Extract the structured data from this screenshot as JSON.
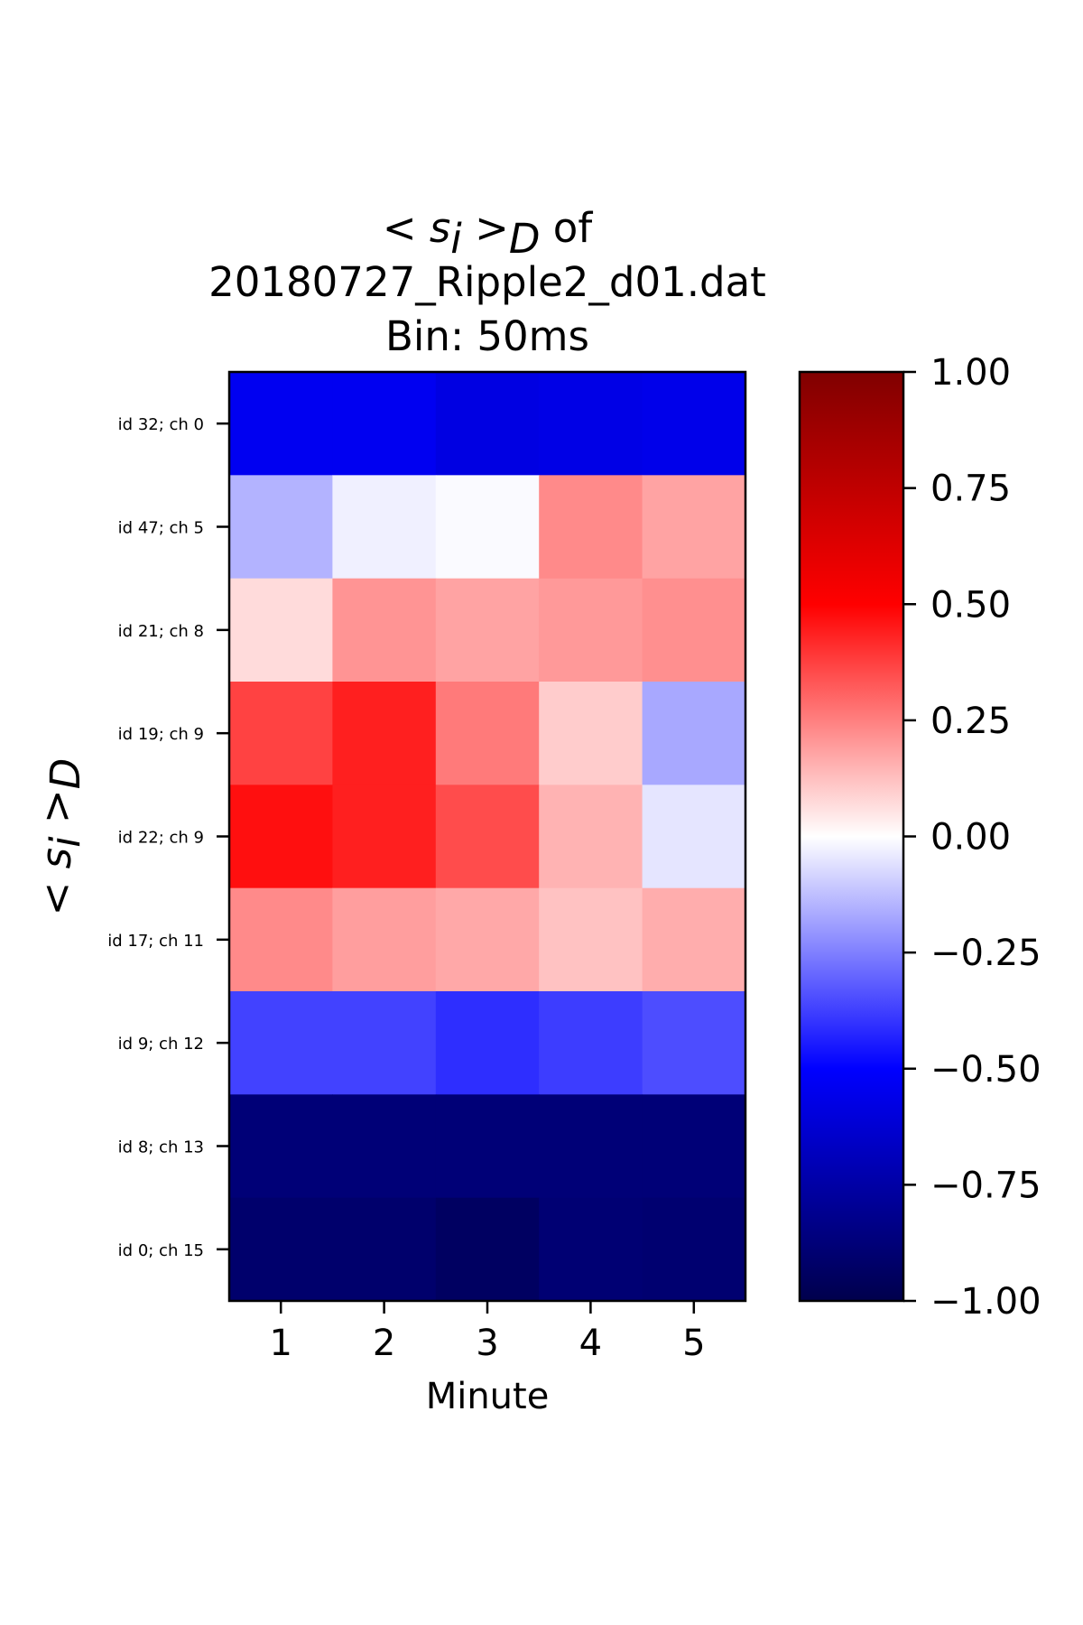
{
  "chart_data": {
    "type": "heatmap",
    "title": {
      "line1_math": "< s",
      "line1_sub_i": "i",
      "line1_gt": " >",
      "line1_sub_D": "D",
      "line1_suffix": " of",
      "line2": "20180727_Ripple2_d01.dat",
      "line3": "Bin: 50ms"
    },
    "xlabel": "Minute",
    "ylabel": {
      "math": "< s",
      "sub_i": "i",
      "gt": " >",
      "sub_D": "D"
    },
    "x_categories": [
      "1",
      "2",
      "3",
      "4",
      "5"
    ],
    "y_categories": [
      "id 32; ch 0",
      "id 47; ch 5",
      "id 21; ch 8",
      "id 19; ch 9",
      "id 22; ch 9",
      "id 17; ch 11",
      "id 9; ch 12",
      "id 8; ch 13",
      "id 0; ch 15"
    ],
    "values": [
      [
        -0.54,
        -0.54,
        -0.58,
        -0.57,
        -0.56
      ],
      [
        -0.15,
        -0.03,
        -0.01,
        0.23,
        0.18
      ],
      [
        0.07,
        0.21,
        0.18,
        0.2,
        0.22
      ],
      [
        0.37,
        0.44,
        0.26,
        0.1,
        -0.17
      ],
      [
        0.47,
        0.44,
        0.35,
        0.15,
        -0.05
      ],
      [
        0.23,
        0.19,
        0.17,
        0.12,
        0.16
      ],
      [
        -0.37,
        -0.37,
        -0.41,
        -0.38,
        -0.35
      ],
      [
        -0.88,
        -0.88,
        -0.88,
        -0.88,
        -0.88
      ],
      [
        -0.91,
        -0.91,
        -0.94,
        -0.89,
        -0.9
      ]
    ],
    "colormap": "seismic",
    "vmin": -1.0,
    "vmax": 1.0,
    "colorbar_ticks": [
      "1.00",
      "0.75",
      "0.50",
      "0.25",
      "0.00",
      "−0.25",
      "−0.50",
      "−0.75",
      "−1.00"
    ],
    "colorbar_tick_values": [
      1.0,
      0.75,
      0.5,
      0.25,
      0.0,
      -0.25,
      -0.5,
      -0.75,
      -1.0
    ],
    "grid": false,
    "colors": {
      "seismic_low": "#00004c",
      "seismic_blue": "#0000ff",
      "seismic_mid": "#ffffff",
      "seismic_red": "#ff0000",
      "seismic_high": "#800000"
    }
  }
}
